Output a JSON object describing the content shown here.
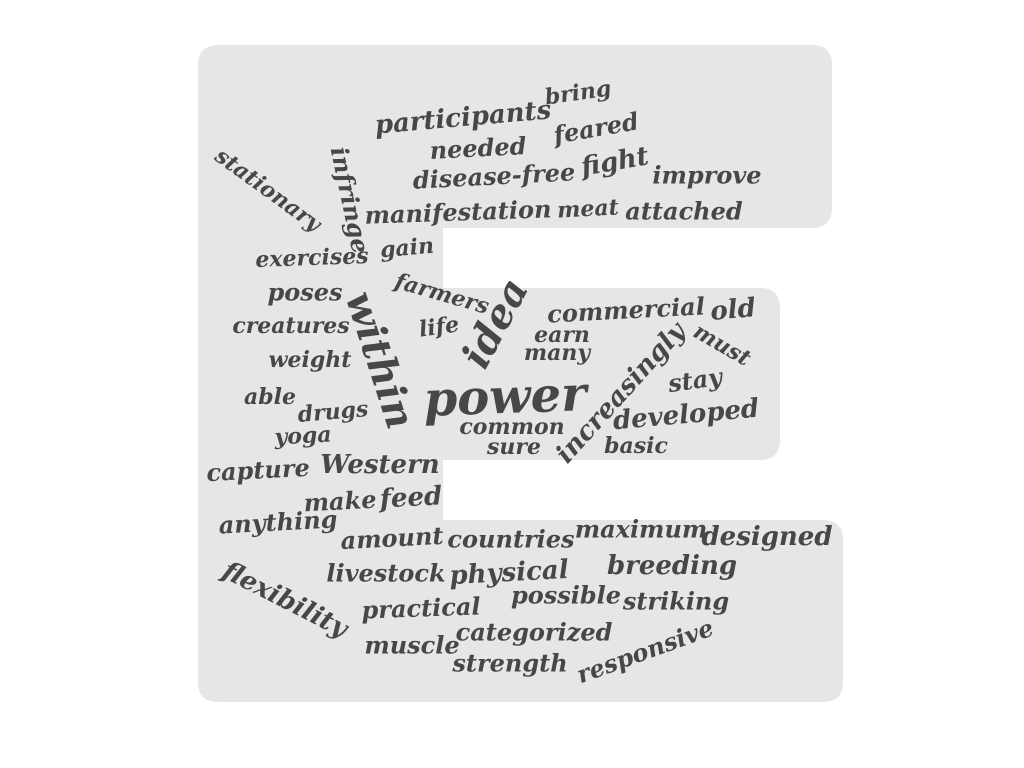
{
  "word_cloud": {
    "text_color": "#474747",
    "shape_color": "#e6e6e6",
    "background_color": "#ffffff",
    "shape": "letter E",
    "words": [
      "bring",
      "participants",
      "feared",
      "needed",
      "stationary",
      "infringe",
      "fight",
      "improve",
      "disease-free",
      "manifestation",
      "meat",
      "attached",
      "gain",
      "exercises",
      "farmers",
      "poses",
      "within",
      "idea",
      "commercial",
      "old",
      "creatures",
      "life",
      "earn",
      "must",
      "many",
      "weight",
      "increasingly",
      "stay",
      "able",
      "power",
      "drugs",
      "developed",
      "common",
      "yoga",
      "sure",
      "basic",
      "capture",
      "Western",
      "make",
      "feed",
      "anything",
      "amount",
      "countries",
      "maximum",
      "designed",
      "livestock",
      "physical",
      "breeding",
      "flexibility",
      "possible",
      "practical",
      "striking",
      "categorized",
      "muscle",
      "responsive",
      "strength"
    ]
  }
}
